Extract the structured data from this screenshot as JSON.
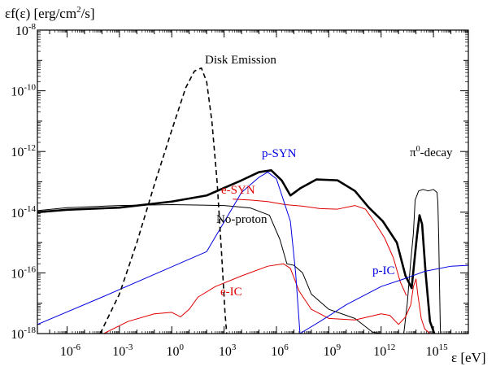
{
  "chart_data": {
    "type": "line",
    "title": "",
    "ylabel_html": [
      "εf(ε) [erg/cm",
      "2",
      "/s]"
    ],
    "xlabel": "ε [eV]",
    "x_scale": "log",
    "y_scale": "log",
    "xlim_log10": [
      -7.7,
      17
    ],
    "ylim_log10": [
      -18,
      -8
    ],
    "x_ticks": [
      {
        "base": "10",
        "exp": "-6"
      },
      {
        "base": "10",
        "exp": "-3"
      },
      {
        "base": "10",
        "exp": "0"
      },
      {
        "base": "10",
        "exp": "3"
      },
      {
        "base": "10",
        "exp": "6"
      },
      {
        "base": "10",
        "exp": "9"
      },
      {
        "base": "10",
        "exp": "12"
      },
      {
        "base": "10",
        "exp": "15"
      }
    ],
    "y_ticks": [
      {
        "base": "10",
        "exp": "-18"
      },
      {
        "base": "10",
        "exp": "-16"
      },
      {
        "base": "10",
        "exp": "-14"
      },
      {
        "base": "10",
        "exp": "-12"
      },
      {
        "base": "10",
        "exp": "-10"
      },
      {
        "base": "10",
        "exp": "-8"
      }
    ],
    "grid": false,
    "annotations": [
      {
        "key": "disk",
        "text": "Disk Emission"
      },
      {
        "key": "psyn",
        "text": "p-SYN"
      },
      {
        "key": "esyn",
        "text": "e-SYN"
      },
      {
        "key": "noproton",
        "text": "No-proton"
      },
      {
        "key": "eic",
        "text": "e-IC"
      },
      {
        "key": "pic",
        "text": "p-IC"
      },
      {
        "key": "pi0",
        "text": "π",
        "sup": "0",
        "tail": "-decay"
      }
    ],
    "series": [
      {
        "key": "total",
        "color": "#000000",
        "style": "solid-thick",
        "points": [
          [
            -7.7,
            -14.0
          ],
          [
            -6,
            -13.92
          ],
          [
            -3,
            -13.85
          ],
          [
            0,
            -13.65
          ],
          [
            2,
            -13.45
          ],
          [
            4,
            -12.95
          ],
          [
            5,
            -12.68
          ],
          [
            5.7,
            -12.62
          ],
          [
            6.3,
            -12.95
          ],
          [
            6.8,
            -13.45
          ],
          [
            7.4,
            -13.2
          ],
          [
            8.3,
            -12.92
          ],
          [
            9.5,
            -12.95
          ],
          [
            10.5,
            -13.3
          ],
          [
            11.3,
            -13.85
          ],
          [
            12.1,
            -14.3
          ],
          [
            12.9,
            -15.0
          ],
          [
            13.4,
            -16.1
          ],
          [
            13.75,
            -16.5
          ],
          [
            14.05,
            -14.8
          ],
          [
            14.2,
            -14.1
          ],
          [
            14.35,
            -14.4
          ],
          [
            14.55,
            -16.0
          ],
          [
            14.8,
            -17.6
          ],
          [
            15.05,
            -18.0
          ]
        ]
      },
      {
        "key": "pi0",
        "color": "#000000",
        "style": "solid-thin",
        "points": [
          [
            13.3,
            -18.0
          ],
          [
            13.5,
            -17.0
          ],
          [
            13.7,
            -15.6
          ],
          [
            13.85,
            -14.7
          ],
          [
            13.95,
            -13.6
          ],
          [
            14.15,
            -13.3
          ],
          [
            14.4,
            -13.25
          ],
          [
            14.7,
            -13.3
          ],
          [
            15.0,
            -13.25
          ],
          [
            15.2,
            -13.35
          ],
          [
            15.25,
            -13.65
          ],
          [
            15.3,
            -14.8
          ],
          [
            15.35,
            -16.5
          ],
          [
            15.4,
            -18.0
          ]
        ]
      },
      {
        "key": "noproton",
        "color": "#000000",
        "style": "solid-thin",
        "points": [
          [
            -7.7,
            -13.95
          ],
          [
            -6,
            -13.85
          ],
          [
            -3,
            -13.78
          ],
          [
            0,
            -13.75
          ],
          [
            3,
            -13.78
          ],
          [
            4.5,
            -13.86
          ],
          [
            5.6,
            -14.1
          ],
          [
            6.2,
            -14.9
          ],
          [
            6.6,
            -15.7
          ],
          [
            7.0,
            -15.75
          ],
          [
            7.5,
            -16.0
          ],
          [
            8.0,
            -16.7
          ],
          [
            9.0,
            -17.2
          ],
          [
            10.5,
            -17.5
          ],
          [
            11.5,
            -17.95
          ],
          [
            12.0,
            -18.0
          ]
        ]
      },
      {
        "key": "esyn",
        "color": "#e00000",
        "style": "solid-thin",
        "points": [
          [
            3.5,
            -13.57
          ],
          [
            4.5,
            -13.6
          ],
          [
            5.5,
            -13.65
          ],
          [
            6.5,
            -13.75
          ],
          [
            7.5,
            -13.8
          ],
          [
            8.5,
            -13.88
          ],
          [
            9.5,
            -13.9
          ],
          [
            10.5,
            -13.78
          ],
          [
            11.1,
            -13.9
          ],
          [
            11.6,
            -14.3
          ],
          [
            12.2,
            -14.85
          ],
          [
            12.7,
            -15.5
          ],
          [
            13.1,
            -16.3
          ],
          [
            13.45,
            -16.75
          ]
        ]
      },
      {
        "key": "eic",
        "color": "#e00000",
        "style": "solid-thin",
        "points": [
          [
            -3.9,
            -18.0
          ],
          [
            -2.5,
            -17.6
          ],
          [
            -1,
            -17.35
          ],
          [
            0,
            -17.3
          ],
          [
            0.5,
            -17.45
          ],
          [
            1,
            -17.2
          ],
          [
            1.5,
            -16.8
          ],
          [
            2.5,
            -16.45
          ],
          [
            4,
            -16.1
          ],
          [
            5.5,
            -15.78
          ],
          [
            6.4,
            -15.7
          ],
          [
            6.8,
            -15.85
          ],
          [
            7.3,
            -16.6
          ],
          [
            8.0,
            -17.2
          ],
          [
            9.0,
            -17.5
          ],
          [
            10.5,
            -17.55
          ],
          [
            12,
            -17.35
          ],
          [
            12.5,
            -17.4
          ],
          [
            13.0,
            -17.7
          ],
          [
            13.4,
            -17.45
          ],
          [
            13.7,
            -17.05
          ],
          [
            13.85,
            -16.45
          ],
          [
            14.0,
            -16.2
          ],
          [
            14.1,
            -16.7
          ],
          [
            14.3,
            -17.5
          ],
          [
            14.5,
            -17.85
          ],
          [
            14.8,
            -18.0
          ]
        ]
      },
      {
        "key": "psyn",
        "color": "#0000e0",
        "style": "solid-thin",
        "points": [
          [
            -7.7,
            -17.7
          ],
          [
            -4,
            -16.8
          ],
          [
            0,
            -15.8
          ],
          [
            2,
            -15.3
          ],
          [
            4,
            -13.35
          ],
          [
            5,
            -12.85
          ],
          [
            5.5,
            -12.68
          ],
          [
            6.0,
            -12.9
          ],
          [
            6.8,
            -14.3
          ],
          [
            7.1,
            -16.0
          ],
          [
            7.35,
            -18.0
          ]
        ]
      },
      {
        "key": "pic",
        "color": "#0000e0",
        "style": "solid-thin",
        "points": [
          [
            7.35,
            -18.0
          ],
          [
            8.5,
            -17.6
          ],
          [
            10,
            -17.05
          ],
          [
            12,
            -16.45
          ],
          [
            13.3,
            -16.2
          ],
          [
            14.5,
            -15.95
          ],
          [
            16,
            -15.78
          ],
          [
            17,
            -15.75
          ]
        ]
      },
      {
        "key": "disk",
        "color": "#000000",
        "style": "dashed",
        "points": [
          [
            -4.1,
            -18.0
          ],
          [
            -3,
            -16.7
          ],
          [
            -2,
            -15.0
          ],
          [
            -1,
            -13.1
          ],
          [
            0,
            -11.3
          ],
          [
            0.8,
            -9.9
          ],
          [
            1.3,
            -9.35
          ],
          [
            1.7,
            -9.25
          ],
          [
            2.0,
            -9.7
          ],
          [
            2.3,
            -11.0
          ],
          [
            2.6,
            -13.0
          ],
          [
            2.85,
            -15.3
          ],
          [
            3.05,
            -17.3
          ],
          [
            3.15,
            -18.0
          ]
        ]
      }
    ]
  }
}
